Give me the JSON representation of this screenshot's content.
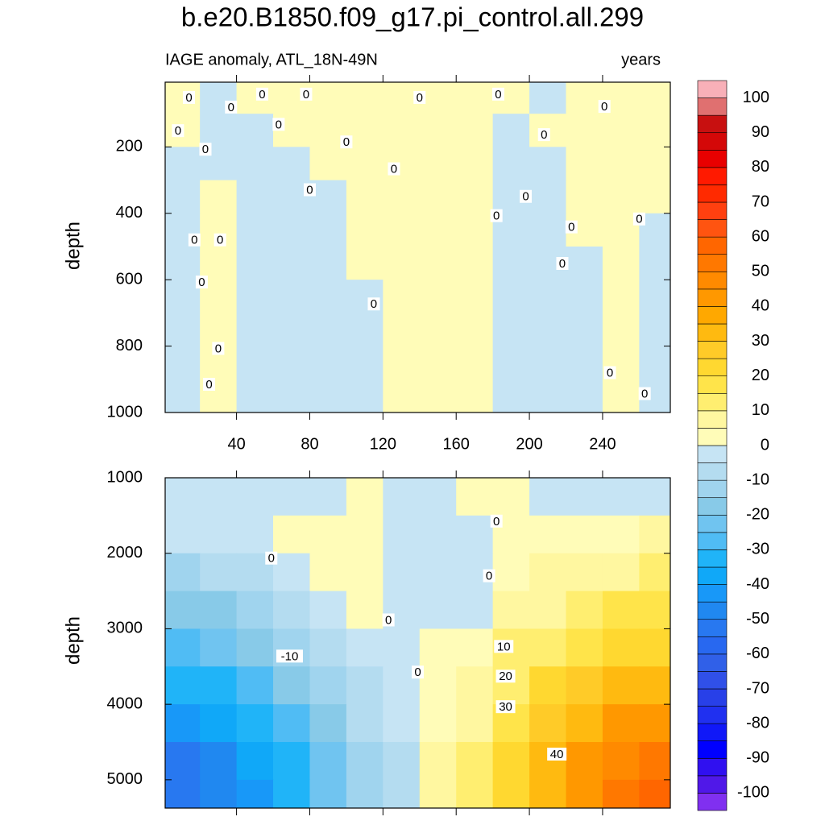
{
  "colorbar": {
    "levels": [
      -100,
      -95,
      -90,
      -85,
      -80,
      -75,
      -70,
      -65,
      -60,
      -55,
      -50,
      -45,
      -40,
      -35,
      -30,
      -25,
      -20,
      -15,
      -10,
      -5,
      0,
      5,
      10,
      15,
      20,
      25,
      30,
      35,
      40,
      45,
      50,
      55,
      60,
      65,
      70,
      75,
      80,
      85,
      90,
      95,
      100
    ],
    "colors": [
      "#8030f0",
      "#5018e8",
      "#3010f0",
      "#0000ff",
      "#1018f8",
      "#2030f0",
      "#2840e8",
      "#3050e8",
      "#3060e8",
      "#2868f0",
      "#2878f0",
      "#2088f0",
      "#1898f8",
      "#10a8f8",
      "#20b4f8",
      "#50bcf4",
      "#70c4f0",
      "#88cae8",
      "#a0d4ee",
      "#b4dcf0",
      "#c6e4f4",
      "#fffcb8",
      "#fff7a0",
      "#ffee70",
      "#ffe44a",
      "#ffd830",
      "#ffcb28",
      "#ffba10",
      "#ffa800",
      "#ff9800",
      "#ff8a00",
      "#ff7800",
      "#ff6600",
      "#ff5410",
      "#ff4010",
      "#ff2a00",
      "#ff1a00",
      "#e80000",
      "#d40808",
      "#c81010",
      "#e07070",
      "#f8b0b8"
    ],
    "ticks": [
      -100,
      -90,
      -80,
      -70,
      -60,
      -50,
      -40,
      -30,
      -20,
      -10,
      0,
      10,
      20,
      30,
      40,
      50,
      60,
      70,
      80,
      90,
      100
    ]
  },
  "chart_data": [
    {
      "type": "contour",
      "title": "b.e20.B1850.f09_g17.pi_control.all.299",
      "subtitle": "IAGE anomaly, ATL_18N-49N",
      "units": "years",
      "ylabel": "depth",
      "xlim": [
        1,
        277
      ],
      "ylim": [
        5,
        1000
      ],
      "yreverse": true,
      "xticks": [
        40,
        80,
        120,
        160,
        200,
        240
      ],
      "yticks": [
        200,
        400,
        600,
        800,
        1000
      ],
      "xtick_labels": true,
      "x": [
        10,
        30,
        50,
        70,
        90,
        110,
        130,
        150,
        170,
        190,
        210,
        230,
        250,
        270
      ],
      "y": [
        50,
        150,
        250,
        350,
        450,
        550,
        650,
        750,
        850,
        950
      ],
      "z": [
        [
          2,
          -2,
          2,
          2,
          2,
          2,
          2,
          2,
          2,
          2,
          -2,
          2,
          2,
          2
        ],
        [
          2,
          -2,
          -2,
          2,
          2,
          2,
          2,
          2,
          2,
          -2,
          2,
          2,
          2,
          2
        ],
        [
          -2,
          -2,
          -2,
          -2,
          2,
          2,
          2,
          2,
          2,
          -2,
          -2,
          2,
          2,
          2
        ],
        [
          -2,
          2,
          -2,
          -2,
          -2,
          2,
          2,
          2,
          2,
          -2,
          -2,
          2,
          2,
          2
        ],
        [
          -2,
          2,
          -2,
          -2,
          -2,
          2,
          2,
          2,
          2,
          -2,
          -2,
          2,
          2,
          -2
        ],
        [
          -2,
          2,
          -2,
          -2,
          -2,
          2,
          2,
          2,
          2,
          -2,
          -2,
          -2,
          2,
          -2
        ],
        [
          -2,
          2,
          -2,
          -2,
          -2,
          -2,
          2,
          2,
          2,
          -2,
          -2,
          -2,
          2,
          -2
        ],
        [
          -2,
          2,
          -2,
          -2,
          -2,
          -2,
          2,
          2,
          2,
          -2,
          -2,
          -2,
          2,
          -2
        ],
        [
          -2,
          2,
          -2,
          -2,
          -2,
          -2,
          2,
          2,
          2,
          -2,
          -2,
          -2,
          2,
          -2
        ],
        [
          -2,
          2,
          -2,
          -2,
          -2,
          -2,
          2,
          2,
          2,
          -2,
          -2,
          -2,
          2,
          -2
        ]
      ],
      "contour_labels": [
        {
          "level": 0,
          "x": 14,
          "y": 51
        },
        {
          "level": 0,
          "x": 8,
          "y": 151
        },
        {
          "level": 0,
          "x": 23,
          "y": 207
        },
        {
          "level": 0,
          "x": 37,
          "y": 80
        },
        {
          "level": 0,
          "x": 54,
          "y": 41
        },
        {
          "level": 0,
          "x": 78,
          "y": 41
        },
        {
          "level": 0,
          "x": 63,
          "y": 132
        },
        {
          "level": 0,
          "x": 80,
          "y": 329
        },
        {
          "level": 0,
          "x": 100,
          "y": 185
        },
        {
          "level": 0,
          "x": 126,
          "y": 266
        },
        {
          "level": 0,
          "x": 140,
          "y": 51
        },
        {
          "level": 0,
          "x": 115,
          "y": 673
        },
        {
          "level": 0,
          "x": 183,
          "y": 41
        },
        {
          "level": 0,
          "x": 182,
          "y": 407
        },
        {
          "level": 0,
          "x": 198,
          "y": 349
        },
        {
          "level": 0,
          "x": 208,
          "y": 163
        },
        {
          "level": 0,
          "x": 223,
          "y": 441
        },
        {
          "level": 0,
          "x": 218,
          "y": 551
        },
        {
          "level": 0,
          "x": 241,
          "y": 78
        },
        {
          "level": 0,
          "x": 260,
          "y": 417
        },
        {
          "level": 0,
          "x": 244,
          "y": 880
        },
        {
          "level": 0,
          "x": 263,
          "y": 943
        },
        {
          "level": 0,
          "x": 30,
          "y": 807
        },
        {
          "level": 0,
          "x": 25,
          "y": 915
        },
        {
          "level": 0,
          "x": 17,
          "y": 480
        },
        {
          "level": 0,
          "x": 31,
          "y": 480
        },
        {
          "level": 0,
          "x": 21,
          "y": 607
        }
      ]
    },
    {
      "type": "contour",
      "ylabel": "depth",
      "xlim": [
        1,
        277
      ],
      "ylim": [
        1000,
        5375
      ],
      "yreverse": true,
      "xticks": [
        40,
        80,
        120,
        160,
        200,
        240
      ],
      "yticks": [
        1000,
        2000,
        3000,
        4000,
        5000
      ],
      "xtick_labels": false,
      "x": [
        10,
        30,
        50,
        70,
        90,
        110,
        130,
        150,
        170,
        190,
        210,
        230,
        250,
        270
      ],
      "y": [
        1250,
        1750,
        2250,
        2750,
        3250,
        3750,
        4250,
        4750,
        5250
      ],
      "z": [
        [
          -2,
          -2,
          -2,
          -2,
          -2,
          2,
          -2,
          -2,
          2,
          2,
          -2,
          -2,
          -2,
          -2
        ],
        [
          -5,
          -4,
          -3,
          2,
          2,
          2,
          -2,
          -2,
          -2,
          2,
          2,
          3,
          4,
          5
        ],
        [
          -12,
          -10,
          -8,
          -4,
          2,
          2,
          -2,
          -2,
          -2,
          3,
          5,
          7,
          9,
          10
        ],
        [
          -20,
          -17,
          -14,
          -9,
          -4,
          2,
          -2,
          -2,
          -2,
          6,
          9,
          12,
          15,
          17
        ],
        [
          -27,
          -24,
          -20,
          -14,
          -8,
          -3,
          -2,
          2,
          4,
          10,
          14,
          18,
          22,
          24
        ],
        [
          -35,
          -32,
          -27,
          -20,
          -12,
          -6,
          -3,
          3,
          7,
          14,
          20,
          26,
          30,
          32
        ],
        [
          -45,
          -40,
          -33,
          -26,
          -17,
          -10,
          -5,
          4,
          9,
          17,
          26,
          34,
          40,
          42
        ],
        [
          -55,
          -48,
          -40,
          -32,
          -22,
          -14,
          -6,
          5,
          10,
          20,
          31,
          40,
          46,
          50
        ],
        [
          -55,
          -50,
          -42,
          -34,
          -24,
          -15,
          -6,
          5,
          10,
          21,
          32,
          42,
          50,
          56
        ]
      ],
      "contour_labels": [
        {
          "level": 0,
          "x": 59,
          "y": 2064
        },
        {
          "level": 0,
          "x": 178,
          "y": 2298
        },
        {
          "level": 0,
          "x": 123,
          "y": 2883
        },
        {
          "level": 0,
          "x": 139,
          "y": 3574
        },
        {
          "level": 0,
          "x": 182,
          "y": 1574
        },
        {
          "level": -10,
          "x": 69,
          "y": 3362
        },
        {
          "level": 10,
          "x": 186,
          "y": 3234
        },
        {
          "level": 20,
          "x": 187,
          "y": 3628
        },
        {
          "level": 30,
          "x": 187,
          "y": 4032
        },
        {
          "level": 40,
          "x": 215,
          "y": 4660
        }
      ]
    }
  ]
}
